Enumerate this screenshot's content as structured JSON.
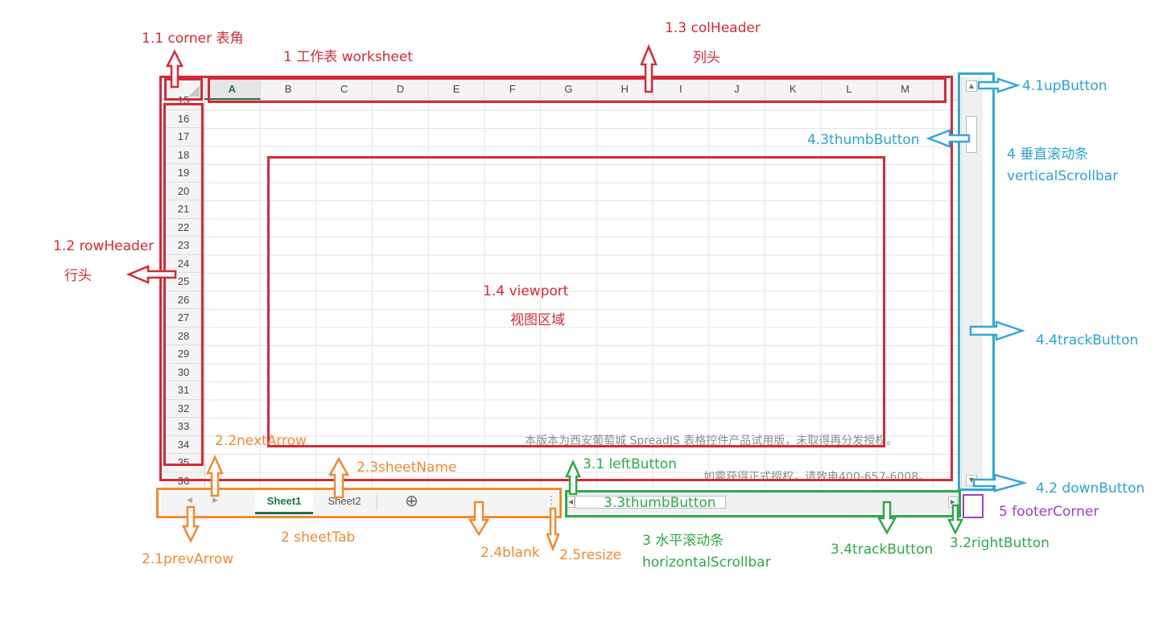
{
  "spreadsheet": {
    "columns": [
      "A",
      "B",
      "C",
      "D",
      "E",
      "F",
      "G",
      "H",
      "I",
      "J",
      "K",
      "L",
      "M"
    ],
    "active_column": "A",
    "rows": [
      "15",
      "16",
      "17",
      "18",
      "19",
      "20",
      "21",
      "22",
      "23",
      "24",
      "25",
      "26",
      "27",
      "28",
      "29",
      "30",
      "31",
      "32",
      "33",
      "34",
      "35",
      "36"
    ],
    "watermark_line1": "本版本为西安葡萄城 SpreadJS 表格控件产品试用版，未取得再分发授权。",
    "watermark_line2": "如需获得正式授权，请致电400-657-6008。",
    "tabs": [
      "Sheet1",
      "Sheet2"
    ],
    "active_tab": "Sheet1",
    "add_symbol": "⊕",
    "resize_symbol": "⋮"
  },
  "labels": {
    "corner": "1.1 corner 表角",
    "worksheet": "1 工作表 worksheet",
    "colheader_1": "1.3  colHeader",
    "colheader_2": "列头",
    "rowheader_1": "1.2  rowHeader",
    "rowheader_2": "行头",
    "viewport_1": "1.4  viewport",
    "viewport_2": "视图区域",
    "up_button": "4.1upButton",
    "thumb_button_v": "4.3thumbButton",
    "vscroll_1": "4 垂直滚动条",
    "vscroll_2": "verticalScrollbar",
    "track_button_v": "4.4trackButton",
    "down_button": "4.2 downButton",
    "footer_corner": "5 footerCorner",
    "next_arrow": "2.2nextArrow",
    "sheet_name": "2.3sheetName",
    "left_button": "3.1 leftButton",
    "thumb_button_h": "3.3thumbButton",
    "sheet_tab": "2 sheetTab",
    "prev_arrow": "2.1prevArrow",
    "blank": "2.4blank",
    "resize": "2.5resize",
    "hscroll_1": "3 水平滚动条",
    "hscroll_2": "horizontalScrollbar",
    "track_button_h": "3.4trackButton",
    "right_button": "3.2rightButton"
  },
  "colors": {
    "worksheet_group": "#d42a37",
    "sheettab_group": "#f08a30",
    "hscroll_group": "#2ea84a",
    "vscroll_group": "#33a7d9",
    "footer_corner": "#a13ec0",
    "excel_green": "#217346"
  }
}
